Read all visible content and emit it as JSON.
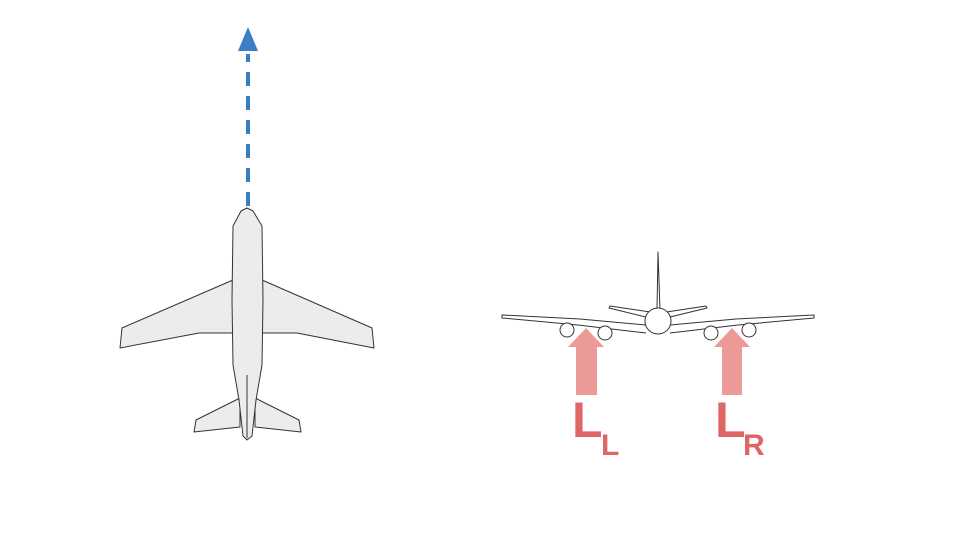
{
  "colors": {
    "background": "#ffffff",
    "heading_arrow": "#3b7ec3",
    "lift_arrow": "#ec9a98",
    "lift_label": "#e06666",
    "aircraft_fill": "#ececec",
    "aircraft_outline": "#333333"
  },
  "top_view": {
    "heading_indicator": "dashed-up-arrow"
  },
  "front_view": {
    "lift_left": {
      "symbol": "L",
      "subscript": "L"
    },
    "lift_right": {
      "symbol": "L",
      "subscript": "R"
    }
  }
}
